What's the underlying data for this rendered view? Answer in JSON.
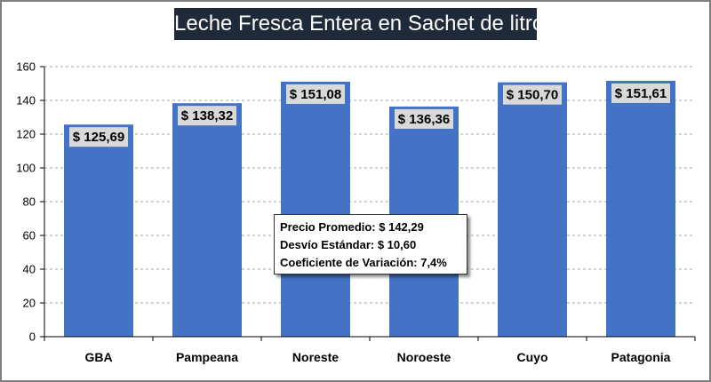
{
  "chart_data": {
    "type": "bar",
    "title": "Leche Fresca Entera en Sachet de litro",
    "categories": [
      "GBA",
      "Pampeana",
      "Noreste",
      "Noroeste",
      "Cuyo",
      "Patagonia"
    ],
    "values": [
      125.69,
      138.32,
      151.08,
      136.36,
      150.7,
      151.61
    ],
    "data_labels": [
      "$ 125,69",
      "$ 138,32",
      "$ 151,08",
      "$ 136,36",
      "$ 150,70",
      "$ 151,61"
    ],
    "ylim": [
      0,
      160
    ],
    "yticks": [
      0,
      20,
      40,
      60,
      80,
      100,
      120,
      140,
      160
    ],
    "grid": true,
    "bar_color": "#4472c4",
    "annotation": {
      "lines": [
        "Precio Promedio: $ 142,29",
        "Desvío Estándar: $ 10,60",
        "Coeficiente de Variación: 7,4%"
      ]
    }
  }
}
